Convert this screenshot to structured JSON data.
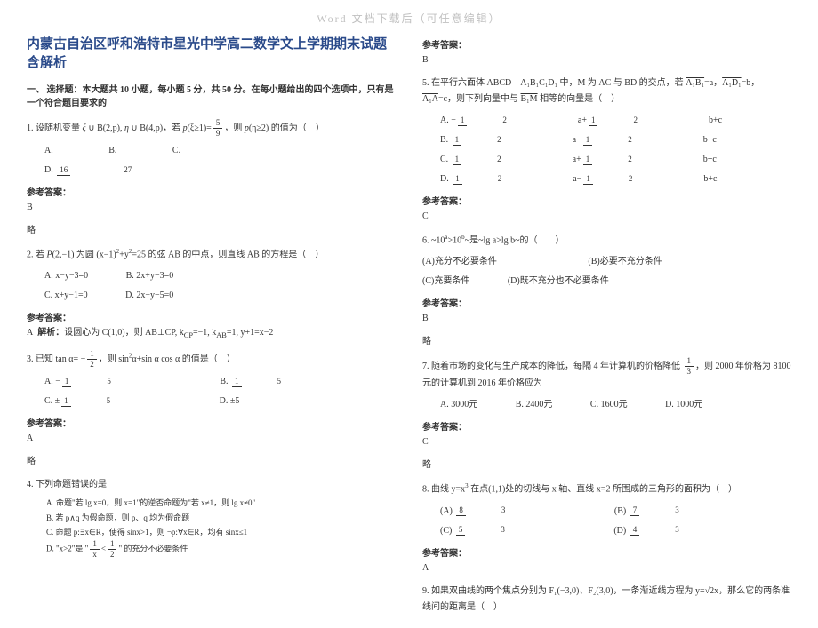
{
  "watermark": "Word 文档下载后（可任意编辑）",
  "title": "内蒙古自治区呼和浩特市星光中学高二数学文上学期期末试题含解析",
  "sectionHead": "一、 选择题：本大题共 10 小题，每小题 5 分，共 50 分。在每小题给出的四个选项中，只有是一个符合题目要求的",
  "q1": "1. 设随机变量 ξ ~ B(2,p)，η ~ B(4,p)，若 P(ξ≥1)= 5/9 ，则 P(η≥2) 的值为（　　）",
  "q1Frac": "16/27",
  "q1opts": {
    "A": "A.",
    "B": "B.",
    "C": "C.",
    "D": "D."
  },
  "ansLabel": "参考答案：",
  "a1": "B",
  "lue": "略",
  "q2": "2. 若 P(2,−1) 为圆 (x−1)²+y²=25 的弦 AB 的中点，则直线 AB 的方程是（　　）",
  "q2opts": {
    "A": "A. x−y−3=0",
    "B": "B. 2x+y−3=0",
    "C": "C. x+y−1=0",
    "D": "D. 2x−y−5=0"
  },
  "a2line": "A  解析：设圆心为 C(1,0)，则 AB⊥CP, k_CP=−1, k_AB=1, y+1=x−2",
  "q3": "3. 已知 tan α= −1/2，则 sin²α+sin α cos α 的值是（　　）",
  "q3opts": {
    "A": "A.",
    "Afrac": "−1/5",
    "B": "B.",
    "Bfrac": "1/5",
    "C": "C.",
    "Cfrac": "±1/5",
    "D": "D. ±5"
  },
  "a3": "A",
  "q4": "4. 下列命题错误的是",
  "q4A": "A. 命题\"若 lg x=0，则 x=1\"的逆否命题为\"若 x≠1，则 lg x≠0\"",
  "q4B": "B. 若 p∧q 为假命题，则 p、q 均为假命题",
  "q4C": "C. 命题 p:∃x∈R，使得 sinx>1，则 ¬p:∀x∈R，均有 sinx≤1",
  "q4D": "D. \"x>2\"是 \"1/x < 1/2\" 的充分不必要条件",
  "a4label": "参考答案：",
  "a4": "B",
  "q5": "5. 在平行六面体 ABCD—A₁B₁C₁D₁ 中，M 为 AC 与 BD 的交点，若 A₁B₁=a，A₁D₁=b，A₁A=c，则下列向量中与 B₁M 相等的向量是（　　）",
  "q5optA": "A. −½a+½b+c",
  "q5optB": "B. ½a−½b+c",
  "q5optC": "C. ½a+½b+c",
  "q5optD": "D. ½a−½b+c",
  "a5": "C",
  "q6": "6. ~10ᵃ>10ᵇ~是~lg a>lg b~的（　　）",
  "q6opts": {
    "A": "(A)充分不必要条件",
    "B": "(B)必要不充分条件",
    "C": "(C)充要条件",
    "D": "(D)既不充分也不必要条件"
  },
  "a6": "B",
  "q7": "7. 随着市场的变化与生产成本的降低，每隔 4 年计算机的价格降低 ⅓，则 2000 年价格为 8100 元的计算机到 2016 年价格应为",
  "q7opts": {
    "A": "A. 3000元",
    "B": "B. 2400元",
    "C": "C. 1600元",
    "D": "D. 1000元"
  },
  "a7": "C",
  "q8": "8. 曲线 y=x³ 在点(1,1)处的切线与 x 轴、直线 x=2 所围成的三角形的面积为（　　）",
  "q8opts": {
    "A": "(A)",
    "Afrac": "8/3",
    "B": "(B)",
    "Bfrac": "7/3",
    "C": "(C)",
    "Cfrac": "5/3",
    "D": "(D)",
    "Dfrac": "4/3"
  },
  "a8": "A",
  "q9": "9. 如果双曲线的两个焦点分别为 F₁(−3,0)、F₂(3,0)，一条渐近线方程为 y=√2x，那么它的两条准线间的距离是（　　）"
}
